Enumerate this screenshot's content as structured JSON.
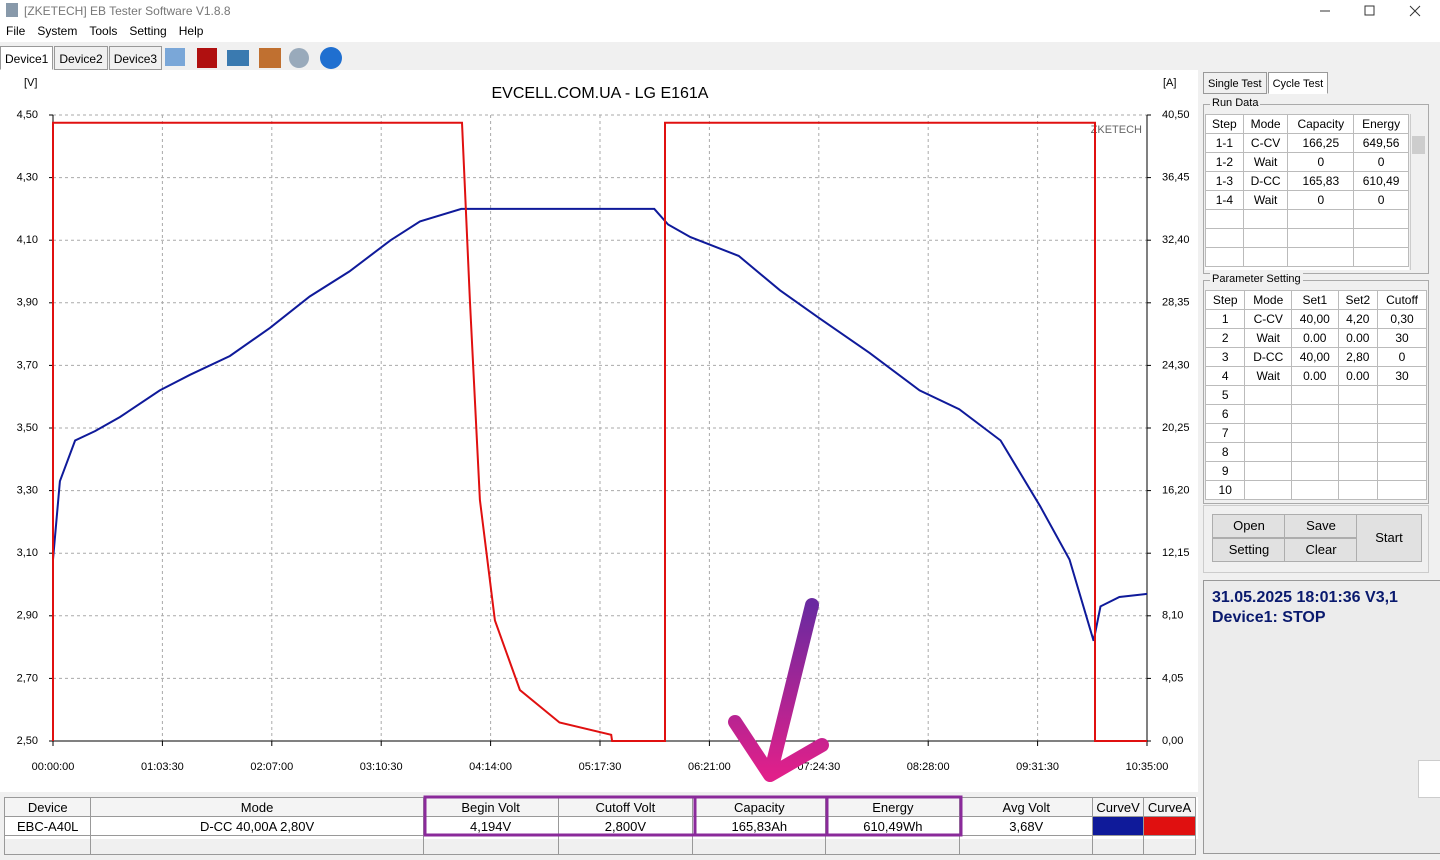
{
  "window": {
    "title": "[ZKETECH] EB Tester Software V1.8.8"
  },
  "menu": [
    "File",
    "System",
    "Tools",
    "Setting",
    "Help"
  ],
  "device_tabs": [
    "Device1",
    "Device2",
    "Device3"
  ],
  "chart_data": {
    "type": "line",
    "title": "EVCELL.COM.UA - LG E161A",
    "y_label": "[V]",
    "y2_label": "[A]",
    "watermark": "ZKETECH",
    "xlim": [
      0,
      635
    ],
    "xticks": [
      {
        "value": 0,
        "label": "00:00:00"
      },
      {
        "value": 63.5,
        "label": "01:03:30"
      },
      {
        "value": 127,
        "label": "02:07:00"
      },
      {
        "value": 190.5,
        "label": "03:10:30"
      },
      {
        "value": 254,
        "label": "04:14:00"
      },
      {
        "value": 317.5,
        "label": "05:17:30"
      },
      {
        "value": 381,
        "label": "06:21:00"
      },
      {
        "value": 444.5,
        "label": "07:24:30"
      },
      {
        "value": 508,
        "label": "08:28:00"
      },
      {
        "value": 571.5,
        "label": "09:31:30"
      },
      {
        "value": 635,
        "label": "10:35:00"
      }
    ],
    "ylim": [
      2.5,
      4.5
    ],
    "yticks": [
      {
        "value": 2.5,
        "label": "2,50"
      },
      {
        "value": 2.7,
        "label": "2,70"
      },
      {
        "value": 2.9,
        "label": "2,90"
      },
      {
        "value": 3.1,
        "label": "3,10"
      },
      {
        "value": 3.3,
        "label": "3,30"
      },
      {
        "value": 3.5,
        "label": "3,50"
      },
      {
        "value": 3.7,
        "label": "3,70"
      },
      {
        "value": 3.9,
        "label": "3,90"
      },
      {
        "value": 4.1,
        "label": "4,10"
      },
      {
        "value": 4.3,
        "label": "4,30"
      },
      {
        "value": 4.5,
        "label": "4,50"
      }
    ],
    "y2lim": [
      0,
      40.5
    ],
    "y2ticks": [
      {
        "value": 0,
        "label": "0,00"
      },
      {
        "value": 4.05,
        "label": "4,05"
      },
      {
        "value": 8.1,
        "label": "8,10"
      },
      {
        "value": 12.15,
        "label": "12,15"
      },
      {
        "value": 16.2,
        "label": "16,20"
      },
      {
        "value": 20.25,
        "label": "20,25"
      },
      {
        "value": 24.3,
        "label": "24,30"
      },
      {
        "value": 28.35,
        "label": "28,35"
      },
      {
        "value": 32.4,
        "label": "32,40"
      },
      {
        "value": 36.45,
        "label": "36,45"
      },
      {
        "value": 40.5,
        "label": "40,50"
      }
    ],
    "grid": true,
    "series": [
      {
        "name": "CurveV",
        "color": "#0f1a9a",
        "x": [
          0,
          4,
          12.8,
          24.4,
          38.9,
          62,
          79.5,
          102.7,
          126,
          149,
          172,
          196,
          213,
          237,
          349,
          357,
          370,
          398,
          422,
          445,
          474,
          503,
          526,
          550,
          573,
          590,
          604,
          608,
          619,
          635
        ],
        "values": [
          3.08,
          3.33,
          3.46,
          3.49,
          3.535,
          3.62,
          3.67,
          3.73,
          3.82,
          3.92,
          4.0,
          4.1,
          4.16,
          4.2,
          4.2,
          4.15,
          4.11,
          4.05,
          3.94,
          3.85,
          3.74,
          3.62,
          3.56,
          3.46,
          3.25,
          3.08,
          2.82,
          2.93,
          2.96,
          2.97
        ]
      },
      {
        "name": "CurveA",
        "color": "#e01010",
        "axis": "y2",
        "x": [
          0,
          0,
          237.4,
          242,
          247.8,
          256.5,
          271,
          294,
          324,
          324.5,
          355.2,
          355.2,
          604.8,
          604.8,
          635
        ],
        "values": [
          0,
          40,
          40,
          28.5,
          15.6,
          7.8,
          3.3,
          1.2,
          0.4,
          0,
          0,
          40,
          40,
          0,
          0
        ]
      }
    ]
  },
  "side_tabs": [
    "Single Test",
    "Cycle Test"
  ],
  "run_data": {
    "title": "Run Data",
    "columns": [
      "Step",
      "Mode",
      "Capacity",
      "Energy"
    ],
    "rows": [
      [
        "1-1",
        "C-CV",
        "166,25",
        "649,56"
      ],
      [
        "1-2",
        "Wait",
        "0",
        "0"
      ],
      [
        "1-3",
        "D-CC",
        "165,83",
        "610,49"
      ],
      [
        "1-4",
        "Wait",
        "0",
        "0"
      ]
    ]
  },
  "parameter_setting": {
    "title": "Parameter Setting",
    "columns": [
      "Step",
      "Mode",
      "Set1",
      "Set2",
      "Cutoff"
    ],
    "rows": [
      [
        "1",
        "C-CV",
        "40,00",
        "4,20",
        "0,30"
      ],
      [
        "2",
        "Wait",
        "0.00",
        "0.00",
        "30"
      ],
      [
        "3",
        "D-CC",
        "40,00",
        "2,80",
        "0"
      ],
      [
        "4",
        "Wait",
        "0.00",
        "0.00",
        "30"
      ],
      [
        "5"
      ],
      [
        "6"
      ],
      [
        "7"
      ],
      [
        "8"
      ],
      [
        "9"
      ],
      [
        "10"
      ]
    ]
  },
  "buttons": [
    "Open",
    "Save",
    "Setting",
    "Clear",
    "Start"
  ],
  "status": [
    "31.05.2025 18:01:36  V3,1",
    "Device1: STOP"
  ],
  "bottom_table": {
    "columns": [
      "Device",
      "Mode",
      "Begin Volt",
      "Cutoff Volt",
      "Capacity",
      "Energy",
      "Avg Volt"
    ],
    "row": [
      "EBC-A40L",
      "D-CC  40,00A  2,80V",
      "4,194V",
      "2,800V",
      "165,83Ah",
      "610,49Wh",
      "3,68V"
    ]
  }
}
